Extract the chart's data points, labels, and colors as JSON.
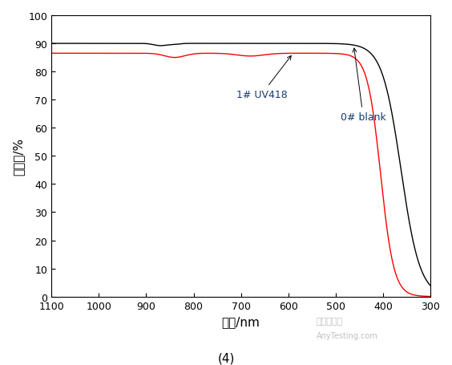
{
  "title": "(4)",
  "xlabel": "波长/nm",
  "ylabel": "透过率/%",
  "xlim": [
    1100,
    300
  ],
  "ylim": [
    0,
    100
  ],
  "xticks": [
    1100,
    1000,
    900,
    800,
    700,
    600,
    500,
    400,
    300
  ],
  "yticks": [
    0,
    10,
    20,
    30,
    40,
    50,
    60,
    70,
    80,
    90,
    100
  ],
  "label_blank": "0# blank",
  "label_uv": "1# UV418",
  "color_blank": "#000000",
  "color_uv": "#ff0000",
  "label_color": "#c8640a",
  "linewidth": 1.0,
  "background": "#ffffff",
  "watermark1": "嘉峪检测网",
  "watermark2": "AnyTesting.com"
}
